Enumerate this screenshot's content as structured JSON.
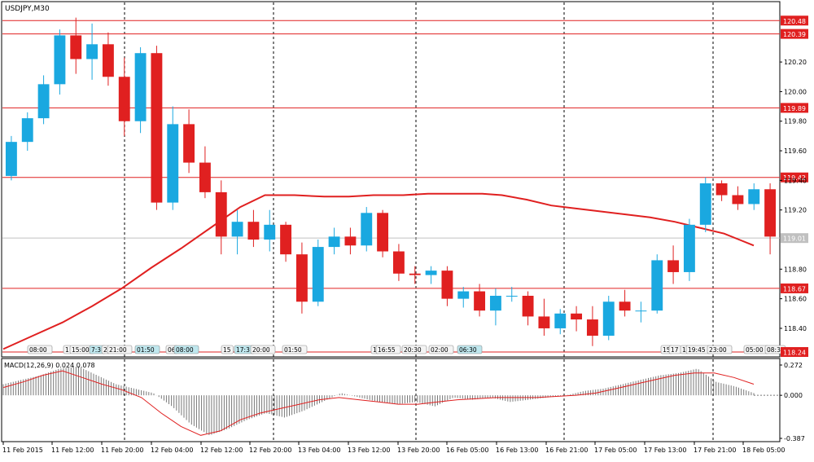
{
  "chart_data": [
    {
      "type": "candlestick",
      "title": "USDJPY,M30",
      "symbol": "USDJPY",
      "timeframe": "M30",
      "ylim": [
        118.24,
        120.52
      ],
      "price_ticks": [
        "120.20",
        "120.00",
        "119.80",
        "119.60",
        "119.40",
        "119.20",
        "118.80",
        "118.60",
        "118.40"
      ],
      "current_price": "119.01",
      "levels": [
        {
          "value": 120.48,
          "label": "120.48"
        },
        {
          "value": 120.39,
          "label": "120.39"
        },
        {
          "value": 119.89,
          "label": "119.89"
        },
        {
          "value": 119.42,
          "label": "119.42"
        },
        {
          "value": 118.67,
          "label": "118.67"
        },
        {
          "value": 118.24,
          "label": "118.24"
        }
      ],
      "x_labels": [
        "11 Feb 2015",
        "11 Feb 12:00",
        "11 Feb 20:00",
        "12 Feb 04:00",
        "12 Feb 12:00",
        "12 Feb 20:00",
        "13 Feb 04:00",
        "13 Feb 12:00",
        "13 Feb 20:00",
        "16 Feb 05:00",
        "16 Feb 13:00",
        "16 Feb 21:00",
        "17 Feb 05:00",
        "17 Feb 13:00",
        "17 Feb 21:00",
        "18 Feb 05:00"
      ],
      "event_markers": [
        "08:00",
        "1",
        "15:00",
        "7:3",
        "2",
        "21:00",
        "01:50",
        "06",
        "08:00",
        "15",
        "17:3",
        "20:00",
        "01:50",
        "1",
        "16:55",
        "20:30",
        "02:00",
        "06:30",
        "15",
        "17",
        "1",
        "19:45",
        "23:00",
        "05:00",
        "08:3"
      ],
      "moving_average": [
        [
          0,
          118.26
        ],
        [
          12,
          118.35
        ],
        [
          24,
          118.44
        ],
        [
          36,
          118.55
        ],
        [
          48,
          118.67
        ],
        [
          60,
          118.81
        ],
        [
          72,
          118.94
        ],
        [
          84,
          119.08
        ],
        [
          96,
          119.22
        ],
        [
          106,
          119.3
        ],
        [
          118,
          119.3
        ],
        [
          130,
          119.29
        ],
        [
          140,
          119.29
        ],
        [
          150,
          119.3
        ],
        [
          162,
          119.3
        ],
        [
          172,
          119.31
        ],
        [
          184,
          119.31
        ],
        [
          194,
          119.31
        ],
        [
          202,
          119.3
        ],
        [
          212,
          119.27
        ],
        [
          222,
          119.23
        ],
        [
          232,
          119.21
        ],
        [
          242,
          119.19
        ],
        [
          252,
          119.17
        ],
        [
          262,
          119.15
        ],
        [
          272,
          119.12
        ],
        [
          282,
          119.08
        ],
        [
          292,
          119.04
        ],
        [
          298,
          119.0
        ],
        [
          304,
          118.96
        ]
      ],
      "candles": [
        [
          119.43,
          119.7,
          119.4,
          119.66
        ],
        [
          119.66,
          119.86,
          119.6,
          119.82
        ],
        [
          119.82,
          120.11,
          119.78,
          120.05
        ],
        [
          120.05,
          120.42,
          119.98,
          120.38
        ],
        [
          120.38,
          120.5,
          120.12,
          120.22
        ],
        [
          120.22,
          120.46,
          120.08,
          120.32
        ],
        [
          120.32,
          120.4,
          120.04,
          120.1
        ],
        [
          120.1,
          120.23,
          119.7,
          119.8
        ],
        [
          119.8,
          120.3,
          119.72,
          120.26
        ],
        [
          120.26,
          120.31,
          119.2,
          119.25
        ],
        [
          119.25,
          119.9,
          119.2,
          119.78
        ],
        [
          119.78,
          119.88,
          119.45,
          119.52
        ],
        [
          119.52,
          119.63,
          119.28,
          119.32
        ],
        [
          119.32,
          119.4,
          118.9,
          119.02
        ],
        [
          119.02,
          119.2,
          118.9,
          119.12
        ],
        [
          119.12,
          119.2,
          118.95,
          119.0
        ],
        [
          119.0,
          119.2,
          118.92,
          119.1
        ],
        [
          119.1,
          119.12,
          118.85,
          118.9
        ],
        [
          118.9,
          118.98,
          118.5,
          118.58
        ],
        [
          118.58,
          119.0,
          118.55,
          118.95
        ],
        [
          118.95,
          119.08,
          118.9,
          119.02
        ],
        [
          119.02,
          119.08,
          118.9,
          118.96
        ],
        [
          118.96,
          119.22,
          118.92,
          119.18
        ],
        [
          119.18,
          119.2,
          118.88,
          118.92
        ],
        [
          118.92,
          118.97,
          118.72,
          118.77
        ],
        [
          118.77,
          118.82,
          118.7,
          118.76
        ],
        [
          118.76,
          118.82,
          118.7,
          118.79
        ],
        [
          118.79,
          118.82,
          118.55,
          118.6
        ],
        [
          118.6,
          118.68,
          118.54,
          118.65
        ],
        [
          118.65,
          118.7,
          118.48,
          118.52
        ],
        [
          118.52,
          118.67,
          118.42,
          118.62
        ],
        [
          118.62,
          118.68,
          118.58,
          118.62
        ],
        [
          118.62,
          118.65,
          118.42,
          118.48
        ],
        [
          118.48,
          118.6,
          118.35,
          118.4
        ],
        [
          118.4,
          118.53,
          118.36,
          118.5
        ],
        [
          118.5,
          118.55,
          118.38,
          118.46
        ],
        [
          118.46,
          118.55,
          118.28,
          118.35
        ],
        [
          118.35,
          118.62,
          118.32,
          118.58
        ],
        [
          118.58,
          118.66,
          118.48,
          118.52
        ],
        [
          118.52,
          118.58,
          118.44,
          118.52
        ],
        [
          118.52,
          118.9,
          118.5,
          118.86
        ],
        [
          118.86,
          118.96,
          118.7,
          118.78
        ],
        [
          118.78,
          119.14,
          118.72,
          119.1
        ],
        [
          119.1,
          119.42,
          119.05,
          119.38
        ],
        [
          119.38,
          119.4,
          119.26,
          119.3
        ],
        [
          119.3,
          119.36,
          119.2,
          119.24
        ],
        [
          119.24,
          119.38,
          119.2,
          119.34
        ],
        [
          119.34,
          119.38,
          118.9,
          119.02
        ]
      ]
    },
    {
      "type": "histogram-line",
      "title": "MACD(12,26,9) 0.024 0.078",
      "indicator": "MACD(12,26,9)",
      "main_value": "0.024",
      "signal_value": "0.078",
      "ylim": [
        -0.387,
        0.272
      ],
      "y_ticks": [
        "0.272",
        "0.000",
        "-0.387"
      ],
      "histogram": [
        0.1,
        0.14,
        0.18,
        0.24,
        0.26,
        0.18,
        0.1,
        0.06,
        0.02,
        -0.1,
        -0.26,
        -0.36,
        -0.3,
        -0.22,
        -0.16,
        -0.2,
        -0.14,
        -0.06,
        0.02,
        -0.02,
        -0.06,
        -0.08,
        -0.06,
        -0.1,
        -0.02,
        -0.04,
        -0.02,
        -0.06,
        -0.04,
        -0.02,
        0.0,
        0.04,
        0.06,
        0.1,
        0.14,
        0.18,
        0.2,
        0.24,
        0.12,
        0.08,
        0.02
      ],
      "signal": [
        0.07,
        0.12,
        0.18,
        0.22,
        0.16,
        0.1,
        0.05,
        -0.02,
        -0.16,
        -0.28,
        -0.36,
        -0.32,
        -0.22,
        -0.16,
        -0.12,
        -0.08,
        -0.04,
        -0.02,
        -0.04,
        -0.06,
        -0.08,
        -0.08,
        -0.06,
        -0.04,
        -0.03,
        -0.02,
        -0.02,
        -0.02,
        -0.01,
        0.0,
        0.02,
        0.06,
        0.1,
        0.14,
        0.18,
        0.2,
        0.2,
        0.16,
        0.1
      ]
    }
  ]
}
